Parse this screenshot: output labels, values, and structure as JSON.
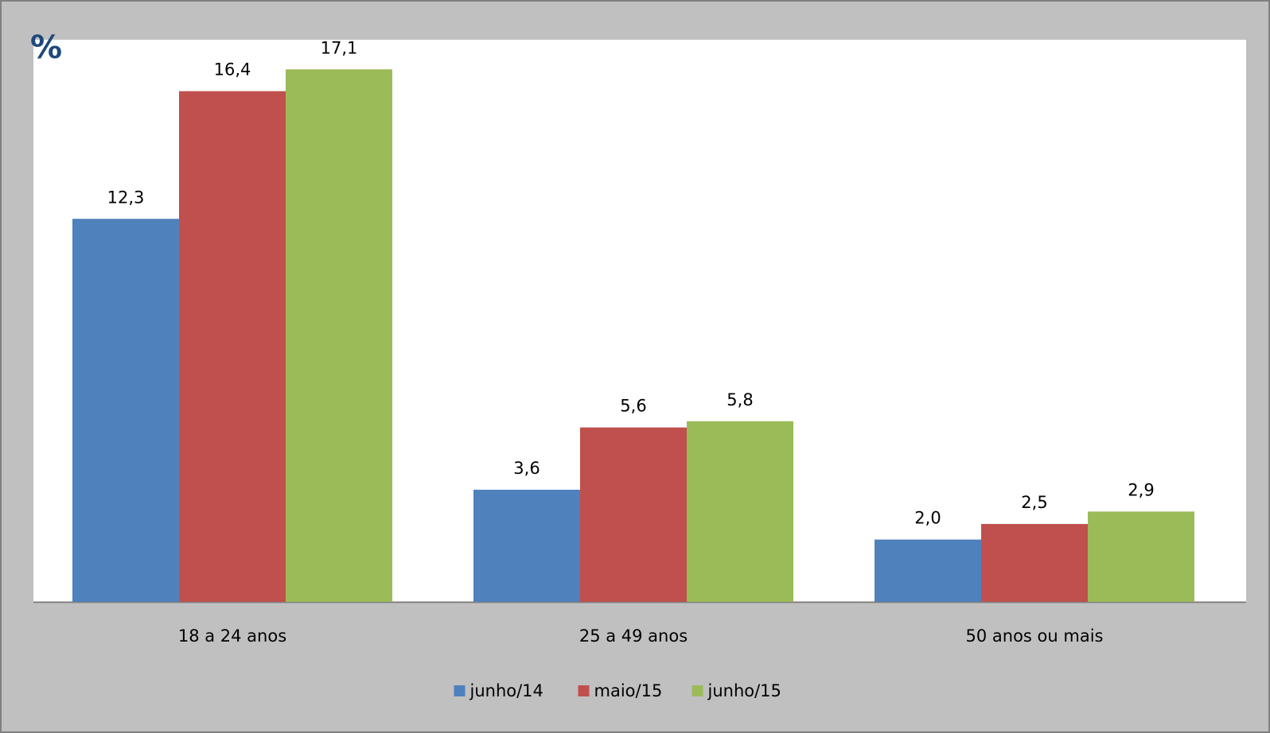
{
  "chart_data": {
    "type": "bar",
    "y_label": "%",
    "categories": [
      "18 a 24 anos",
      "25 a 49 anos",
      "50 anos ou mais"
    ],
    "series": [
      {
        "name": "junho/14",
        "color": "#4f81bd",
        "values": [
          12.3,
          3.6,
          2.0
        ],
        "value_labels": [
          "12,3",
          "3,6",
          "2,0"
        ]
      },
      {
        "name": "maio/15",
        "color": "#c0504d",
        "values": [
          16.4,
          5.6,
          2.5
        ],
        "value_labels": [
          "16,4",
          "5,6",
          "2,5"
        ]
      },
      {
        "name": "junho/15",
        "color": "#9bbb59",
        "values": [
          17.1,
          5.8,
          2.9
        ],
        "value_labels": [
          "17,1",
          "5,8",
          "2,9"
        ]
      }
    ],
    "ylim": [
      0,
      18
    ],
    "legend": "bottom"
  }
}
